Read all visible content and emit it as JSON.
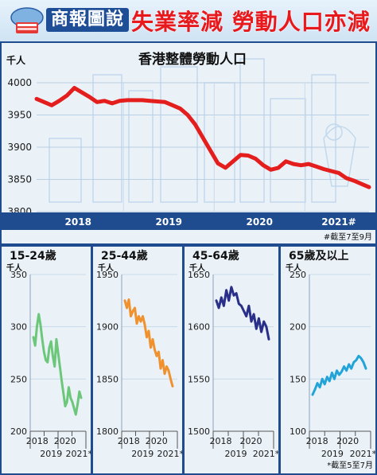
{
  "header": {
    "badge": "商報圖說",
    "headline": "失業率減 勞動人口亦減"
  },
  "main_chart": {
    "unit": "千人",
    "footnote": "#截至7至9月"
  },
  "small_charts": {
    "unit": "千人",
    "x_top_ticks": [
      "2018",
      "2020"
    ],
    "x_bottom_ticks": [
      "2019",
      "2021*"
    ],
    "footnote": "*截至5至7月"
  },
  "chart_data": [
    {
      "type": "line",
      "title": "香港整體勞動人口",
      "ylabel": "千人",
      "ylim": [
        3800,
        4000
      ],
      "yticks": [
        3800,
        3850,
        3900,
        3950,
        4000
      ],
      "xticks": [
        "2018",
        "2019",
        "2020",
        "2021#"
      ],
      "color": "#e41d1d",
      "x": [
        "2018-01",
        "2018-02",
        "2018-03",
        "2018-04",
        "2018-05",
        "2018-06",
        "2018-07",
        "2018-08",
        "2018-09",
        "2018-10",
        "2018-11",
        "2018-12",
        "2019-01",
        "2019-02",
        "2019-03",
        "2019-04",
        "2019-05",
        "2019-06",
        "2019-07",
        "2019-08",
        "2019-09",
        "2019-10",
        "2019-11",
        "2019-12",
        "2020-01",
        "2020-02",
        "2020-03",
        "2020-04",
        "2020-05",
        "2020-06",
        "2020-07",
        "2020-08",
        "2020-09",
        "2020-10",
        "2020-11",
        "2020-12",
        "2021-01",
        "2021-02",
        "2021-03",
        "2021-04",
        "2021-05",
        "2021-06",
        "2021-07",
        "2021-08",
        "2021-09"
      ],
      "values": [
        3975,
        3970,
        3965,
        3972,
        3980,
        3992,
        3985,
        3978,
        3970,
        3972,
        3968,
        3972,
        3973,
        3973,
        3973,
        3972,
        3971,
        3970,
        3965,
        3960,
        3950,
        3935,
        3915,
        3895,
        3875,
        3868,
        3878,
        3888,
        3887,
        3882,
        3872,
        3865,
        3868,
        3878,
        3874,
        3872,
        3874,
        3870,
        3866,
        3863,
        3860,
        3852,
        3848,
        3843,
        3838
      ]
    },
    {
      "type": "line",
      "title": "15-24歲",
      "ylabel": "千人",
      "ylim": [
        200,
        350
      ],
      "yticks": [
        200,
        250,
        300,
        350
      ],
      "color": "#6cc77a",
      "values": [
        290,
        282,
        300,
        312,
        302,
        288,
        276,
        268,
        266,
        280,
        286,
        272,
        262,
        288,
        275,
        262,
        248,
        236,
        224,
        228,
        242,
        232,
        228,
        222,
        216,
        226,
        238,
        232
      ]
    },
    {
      "type": "line",
      "title": "25-44歲",
      "ylabel": "千人",
      "ylim": [
        1800,
        1950
      ],
      "yticks": [
        1800,
        1850,
        1900,
        1950
      ],
      "color": "#f0912e",
      "values": [
        1925,
        1918,
        1926,
        1910,
        1915,
        1918,
        1903,
        1910,
        1905,
        1910,
        1902,
        1890,
        1896,
        1880,
        1888,
        1878,
        1872,
        1876,
        1860,
        1868,
        1855,
        1862,
        1858,
        1850,
        1843
      ]
    },
    {
      "type": "line",
      "title": "45-64歲",
      "ylabel": "千人",
      "ylim": [
        1500,
        1650
      ],
      "yticks": [
        1500,
        1550,
        1600,
        1650
      ],
      "color": "#2a2f8a",
      "values": [
        1625,
        1618,
        1628,
        1620,
        1635,
        1625,
        1638,
        1630,
        1632,
        1622,
        1620,
        1615,
        1610,
        1620,
        1605,
        1612,
        1598,
        1608,
        1595,
        1605,
        1600,
        1588
      ]
    },
    {
      "type": "line",
      "title": "65歲及以上",
      "ylabel": "千人",
      "ylim": [
        100,
        250
      ],
      "yticks": [
        100,
        150,
        200,
        250
      ],
      "color": "#22a4d9",
      "values": [
        135,
        140,
        146,
        142,
        150,
        145,
        152,
        148,
        156,
        150,
        158,
        154,
        157,
        162,
        158,
        164,
        160,
        166,
        168,
        172,
        170,
        166,
        160
      ]
    }
  ]
}
